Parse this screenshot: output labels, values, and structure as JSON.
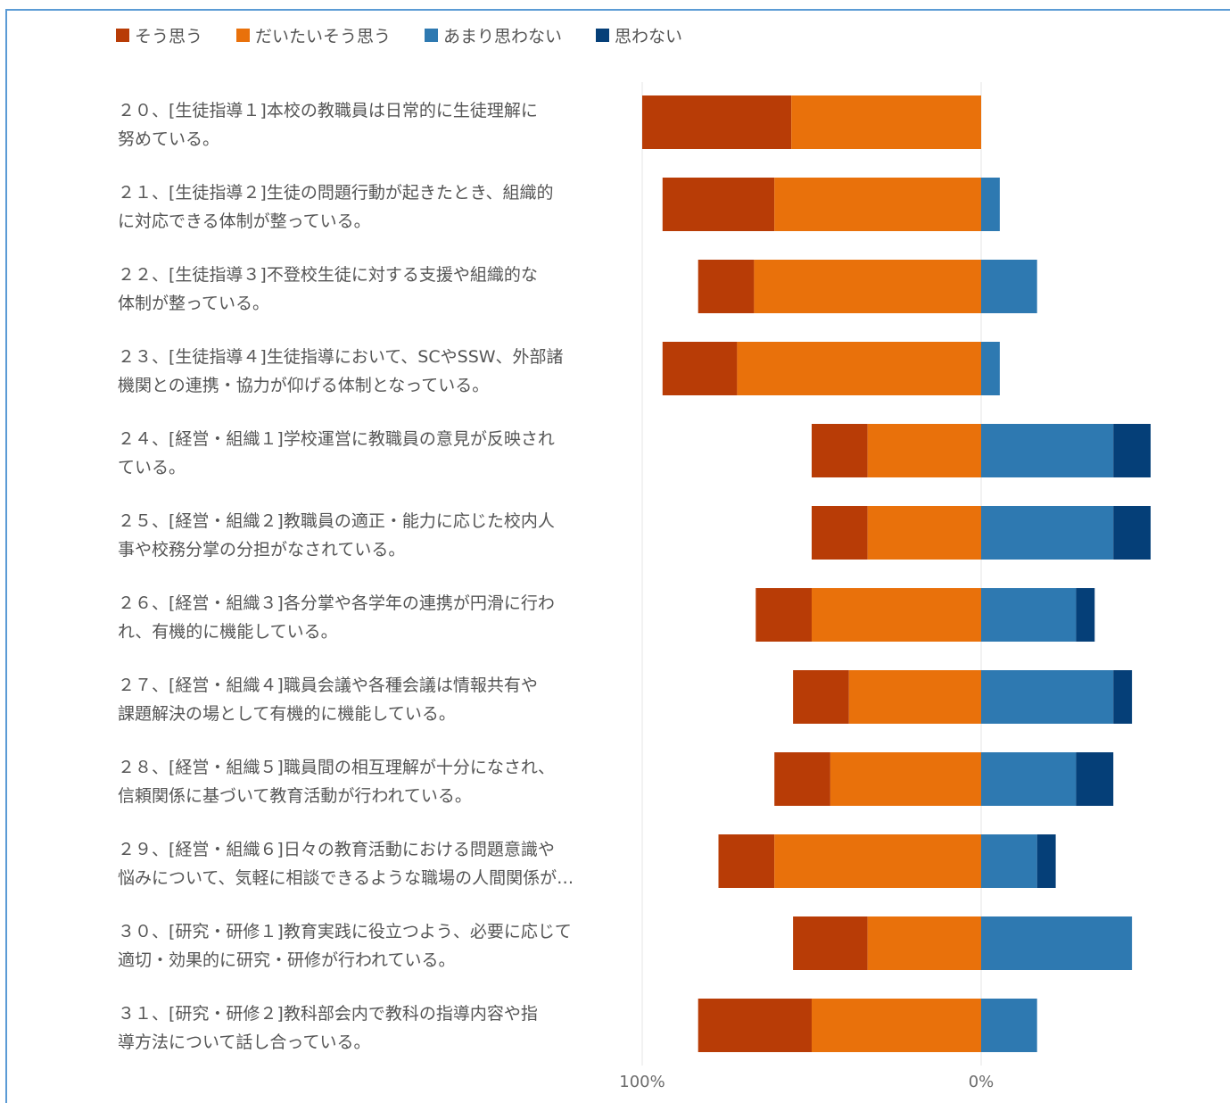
{
  "colors": {
    "strongly_agree": "#b83c06",
    "mostly_agree": "#e9710b",
    "not_much": "#2e79b1",
    "disagree": "#053f78",
    "grid": "#e4e4e4",
    "frame": "#5b9bd5"
  },
  "chart_data": {
    "type": "bar",
    "orientation": "horizontal-diverging",
    "legend_position": "top-left",
    "grid": true,
    "series": [
      {
        "name": "そう思う",
        "color": "#b83c06"
      },
      {
        "name": "だいたいそう思う",
        "color": "#e9710b"
      },
      {
        "name": "あまり思わない",
        "color": "#2e79b1"
      },
      {
        "name": "思わない",
        "color": "#053f78"
      }
    ],
    "categories": [
      {
        "label_lines": [
          "２０、[生徒指導１]本校の教職員は日常的に生徒理解に",
          "努めている。"
        ],
        "values": [
          44,
          56,
          0,
          0
        ]
      },
      {
        "label_lines": [
          "２１、[生徒指導２]生徒の問題行動が起きたとき、組織的",
          "に対応できる体制が整っている。"
        ],
        "values": [
          33,
          61,
          5.5,
          0
        ]
      },
      {
        "label_lines": [
          "２２、[生徒指導３]不登校生徒に対する支援や組織的な",
          "体制が整っている。"
        ],
        "values": [
          16.5,
          67,
          16.5,
          0
        ]
      },
      {
        "label_lines": [
          "２３、[生徒指導４]生徒指導において、SCやSSW、外部諸",
          "機関との連携・協力が仰げる体制となっている。"
        ],
        "values": [
          22,
          72,
          5.5,
          0
        ]
      },
      {
        "label_lines": [
          "２４、[経営・組織１]学校運営に教職員の意見が反映され",
          "ている。"
        ],
        "values": [
          16.5,
          33.5,
          39,
          11
        ]
      },
      {
        "label_lines": [
          "２５、[経営・組織２]教職員の適正・能力に応じた校内人",
          "事や校務分掌の分担がなされている。"
        ],
        "values": [
          16.5,
          33.5,
          39,
          11
        ]
      },
      {
        "label_lines": [
          "２６、[経営・組織３]各分掌や各学年の連携が円滑に行わ",
          "れ、有機的に機能している。"
        ],
        "values": [
          16.5,
          50,
          28,
          5.5
        ]
      },
      {
        "label_lines": [
          "２７、[経営・組織４]職員会議や各種会議は情報共有や",
          "課題解決の場として有機的に機能している。"
        ],
        "values": [
          16.5,
          39,
          39,
          5.5
        ]
      },
      {
        "label_lines": [
          "２８、[経営・組織５]職員間の相互理解が十分になされ、",
          "信頼関係に基づいて教育活動が行われている。"
        ],
        "values": [
          16.5,
          44.5,
          28,
          11
        ]
      },
      {
        "label_lines": [
          "２９、[経営・組織６]日々の教育活動における問題意識や",
          "悩みについて、気軽に相談できるような職場の人間関係が…"
        ],
        "values": [
          16.5,
          61,
          16.5,
          5.5
        ]
      },
      {
        "label_lines": [
          "３０、[研究・研修１]教育実践に役立つよう、必要に応じて",
          "適切・効果的に研究・研修が行われている。"
        ],
        "values": [
          22,
          33.5,
          44.5,
          0
        ]
      },
      {
        "label_lines": [
          "３１、[研究・研修２]教科部会内で教科の指導内容や指",
          "導方法について話し合っている。"
        ],
        "values": [
          33.5,
          50,
          16.5,
          0
        ]
      }
    ],
    "xlim": [
      -100,
      100
    ],
    "x_ticks": [
      {
        "value": -100,
        "label": "100%"
      },
      {
        "value": 0,
        "label": "0%"
      }
    ]
  }
}
